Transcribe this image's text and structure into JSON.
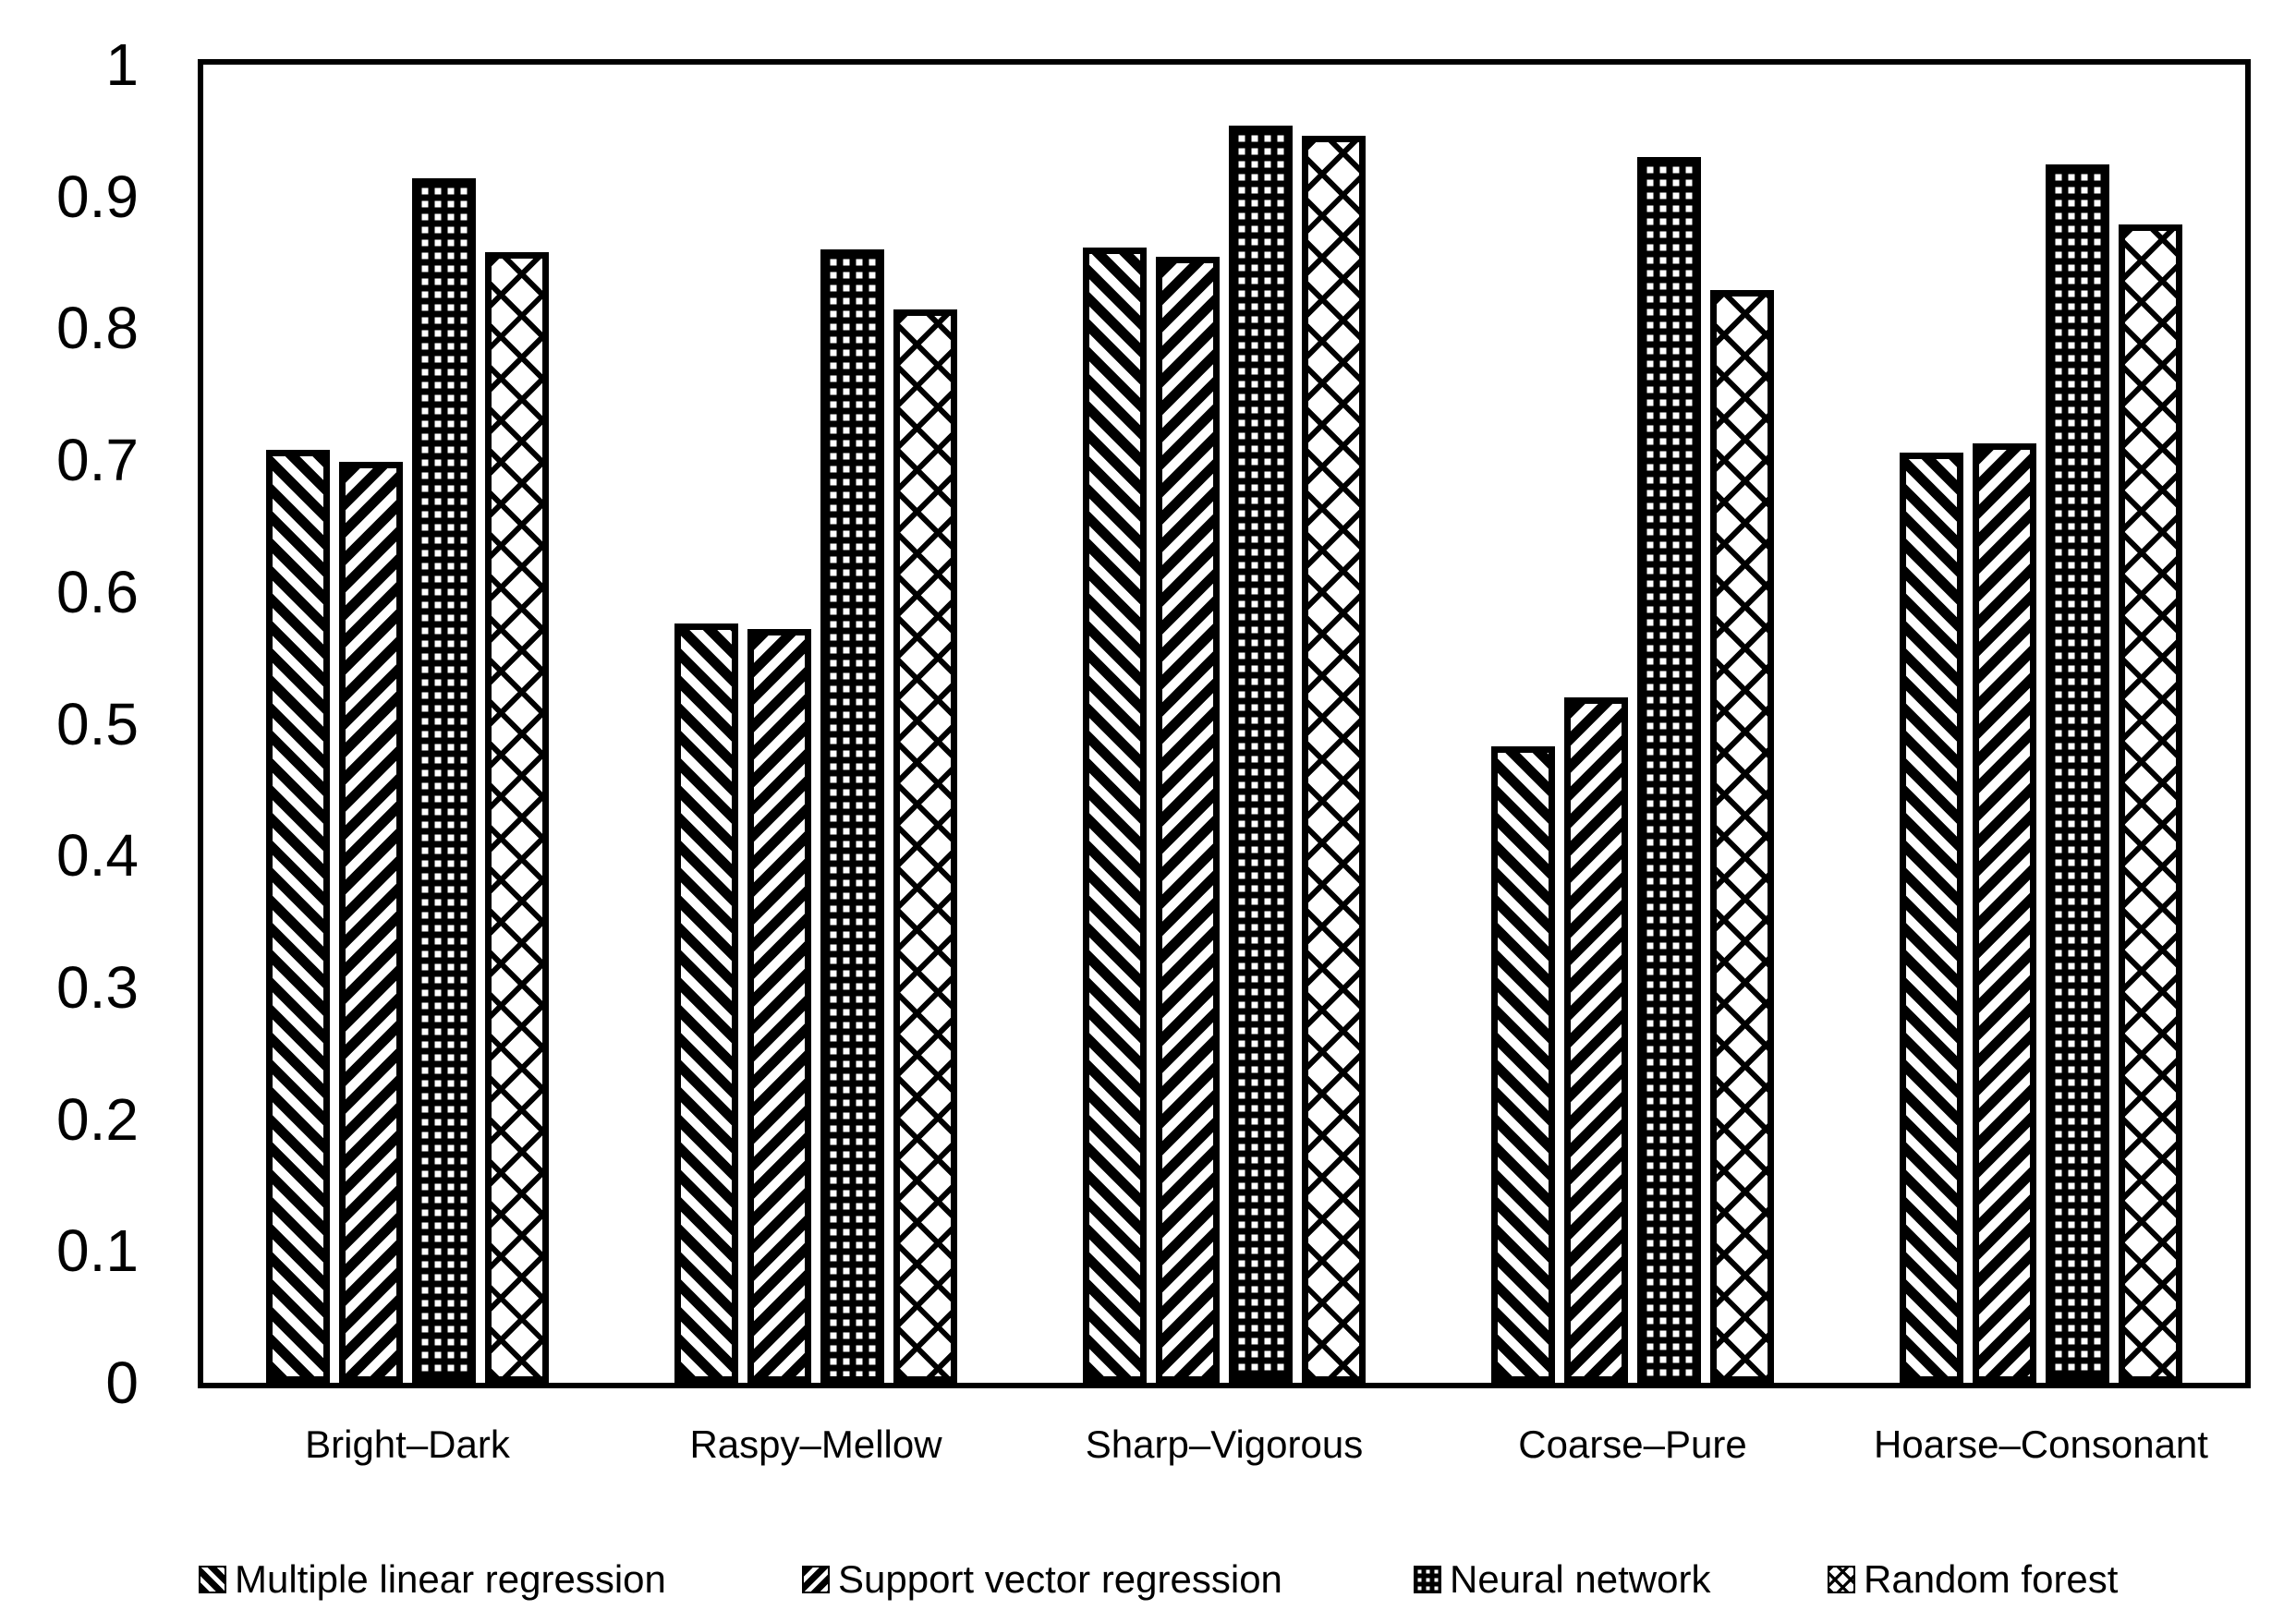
{
  "chart_data": {
    "type": "bar",
    "categories": [
      "Bright–Dark",
      "Raspy–Mellow",
      "Sharp–Vigorous",
      "Coarse–Pure",
      "Hoarse–Consonant"
    ],
    "series": [
      {
        "name": "Multiple linear regression",
        "pattern": "diagonal-down",
        "values": [
          0.708,
          0.576,
          0.861,
          0.483,
          0.706
        ]
      },
      {
        "name": "Support vector regression",
        "pattern": "diagonal-up",
        "values": [
          0.699,
          0.572,
          0.854,
          0.52,
          0.713
        ]
      },
      {
        "name": "Neural network",
        "pattern": "dotted-grid",
        "values": [
          0.914,
          0.86,
          0.954,
          0.93,
          0.924
        ]
      },
      {
        "name": "Random forest",
        "pattern": "diamond-crosshatch",
        "values": [
          0.858,
          0.814,
          0.946,
          0.829,
          0.879
        ]
      }
    ],
    "ylim": [
      0,
      1
    ],
    "y_tick_labels": [
      "0",
      "0.1",
      "0.2",
      "0.3",
      "0.4",
      "0.5",
      "0.6",
      "0.7",
      "0.8",
      "0.9",
      "1"
    ],
    "grid": false,
    "legend_position": "bottom",
    "colors": {
      "foreground": "#000000",
      "background": "#ffffff"
    }
  }
}
